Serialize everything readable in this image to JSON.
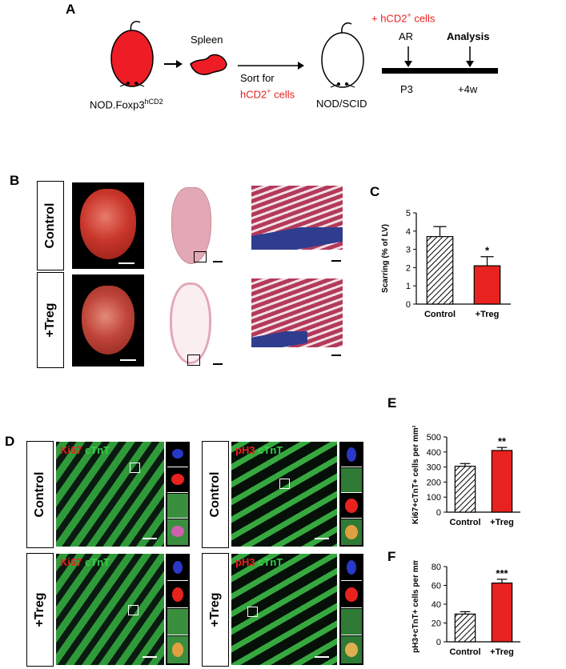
{
  "panelA": {
    "label": "A",
    "donor_label_main": "NOD.Foxp3",
    "donor_label_sup": "hCD2",
    "spleen_label": "Spleen",
    "sort_line1": "Sort for",
    "sort_line2_main": "hCD2",
    "sort_line2_sup": "+",
    "sort_line2_tail": " cells",
    "recipient_label": "NOD/SCID",
    "cells_label_main": "+ hCD2",
    "cells_label_sup": "+",
    "cells_label_tail": " cells",
    "ar_label": "AR",
    "analysis_label": "Analysis",
    "p3_label": "P3",
    "w4_label": "+4w"
  },
  "panelB": {
    "label": "B",
    "row1": "Control",
    "row2": "+Treg"
  },
  "panelC": {
    "label": "C",
    "chart_data": {
      "type": "bar",
      "categories": [
        "Control",
        "+Treg"
      ],
      "values": [
        3.7,
        2.1
      ],
      "errors": [
        0.55,
        0.5
      ],
      "ylabel": "Scarring (% of LV)",
      "ylim": [
        0,
        5
      ],
      "yticks": [
        "0",
        "1",
        "2",
        "3",
        "4",
        "5"
      ],
      "significance": [
        "",
        "*"
      ],
      "colors": [
        "hatched",
        "#e8221f"
      ]
    }
  },
  "panelD": {
    "label": "D",
    "row1": "Control",
    "row2": "+Treg",
    "ki67": "Ki67",
    "ph3": "pH3",
    "ctnt": " cTnT"
  },
  "panelE": {
    "label": "E",
    "chart_data": {
      "type": "bar",
      "categories": [
        "Control",
        "+Treg"
      ],
      "values": [
        305,
        410
      ],
      "errors": [
        18,
        20
      ],
      "ylabel": "Ki67+cTnT+ cells per mm²",
      "ylim": [
        0,
        500
      ],
      "yticks": [
        "0",
        "100",
        "200",
        "300",
        "400",
        "500"
      ],
      "significance": [
        "",
        "**"
      ],
      "colors": [
        "hatched",
        "#e8221f"
      ]
    }
  },
  "panelF": {
    "label": "F",
    "chart_data": {
      "type": "bar",
      "categories": [
        "Control",
        "+Treg"
      ],
      "values": [
        29.5,
        62.5
      ],
      "errors": [
        2.5,
        4
      ],
      "ylabel": "pH3+cTnT+ cells per mm²",
      "ylim": [
        0,
        80
      ],
      "yticks": [
        "0",
        "20",
        "40",
        "60",
        "80"
      ],
      "significance": [
        "",
        "***"
      ],
      "colors": [
        "hatched",
        "#e8221f"
      ]
    }
  }
}
